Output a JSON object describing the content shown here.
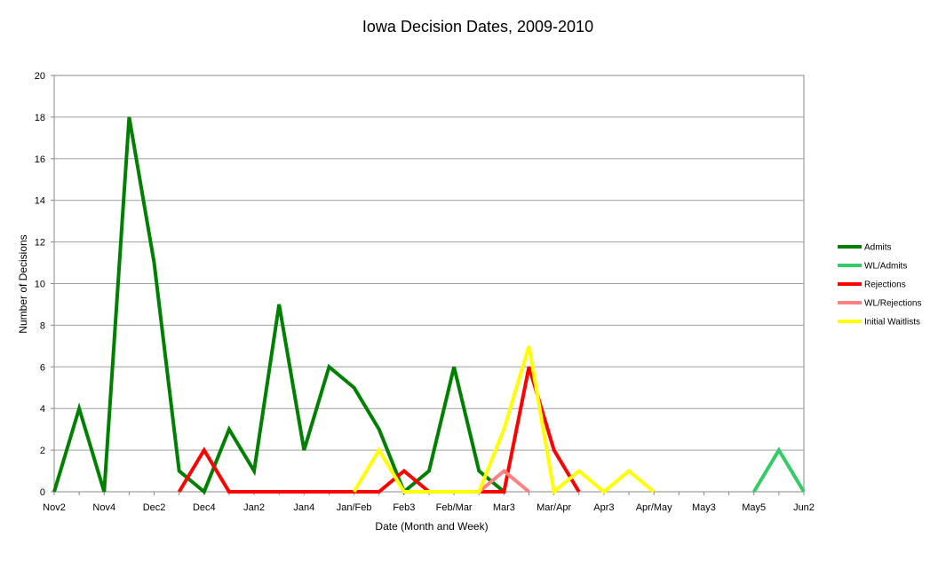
{
  "chart_data": {
    "type": "line",
    "title": "Iowa Decision Dates, 2009-2010",
    "xlabel": "Date (Month and Week)",
    "ylabel": "Number of Decisions",
    "ylim": [
      0,
      20
    ],
    "yticks": [
      0,
      2,
      4,
      6,
      8,
      10,
      12,
      14,
      16,
      18,
      20
    ],
    "grid": true,
    "legend_position": "right",
    "x_tick_labels": [
      "Nov2",
      "Nov4",
      "Dec2",
      "Dec4",
      "Jan2",
      "Jan4",
      "Jan/Feb",
      "Feb3",
      "Feb/Mar",
      "Mar3",
      "Mar/Apr",
      "Apr3",
      "Apr/May",
      "May3",
      "May5",
      "Jun2"
    ],
    "x_tick_index": [
      0,
      2,
      4,
      6,
      8,
      10,
      12,
      14,
      16,
      18,
      20,
      22,
      24,
      26,
      28,
      30
    ],
    "x_count": 31,
    "series": [
      {
        "name": "Admits",
        "color": "#008000",
        "points": [
          [
            0,
            0
          ],
          [
            1,
            4
          ],
          [
            2,
            0
          ],
          [
            3,
            18
          ],
          [
            4,
            11
          ],
          [
            5,
            1
          ],
          [
            6,
            0
          ],
          [
            7,
            3
          ],
          [
            8,
            1
          ],
          [
            9,
            9
          ],
          [
            10,
            2
          ],
          [
            11,
            6
          ],
          [
            12,
            5
          ],
          [
            13,
            3
          ],
          [
            14,
            0
          ],
          [
            15,
            1
          ],
          [
            16,
            6
          ],
          [
            17,
            1
          ],
          [
            18,
            0
          ]
        ]
      },
      {
        "name": "WL/Admits",
        "color": "#33cc66",
        "points": [
          [
            28,
            0
          ],
          [
            29,
            2
          ],
          [
            30,
            0
          ]
        ]
      },
      {
        "name": "Rejections",
        "color": "#ff0000",
        "points": [
          [
            5,
            0
          ],
          [
            6,
            2
          ],
          [
            7,
            0
          ],
          [
            13,
            0
          ],
          [
            14,
            1
          ],
          [
            15,
            0
          ],
          [
            18,
            0
          ],
          [
            19,
            6
          ],
          [
            20,
            2
          ],
          [
            21,
            0
          ]
        ]
      },
      {
        "name": "WL/Rejections",
        "color": "#ff8080",
        "points": [
          [
            17,
            0
          ],
          [
            18,
            1
          ],
          [
            19,
            0
          ]
        ]
      },
      {
        "name": "Initial Waitlists",
        "color": "#ffff00",
        "points": [
          [
            12,
            0
          ],
          [
            13,
            2
          ],
          [
            14,
            0
          ],
          [
            17,
            0
          ],
          [
            18,
            3
          ],
          [
            19,
            7
          ],
          [
            20,
            0
          ],
          [
            21,
            1
          ],
          [
            22,
            0
          ],
          [
            23,
            1
          ],
          [
            24,
            0
          ]
        ]
      }
    ]
  }
}
